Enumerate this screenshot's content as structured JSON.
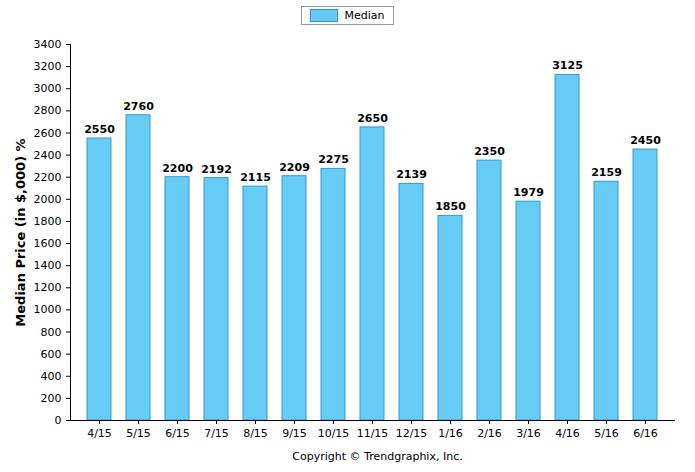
{
  "chart_data": {
    "type": "bar",
    "categories": [
      "4/15",
      "5/15",
      "6/15",
      "7/15",
      "8/15",
      "9/15",
      "10/15",
      "11/15",
      "12/15",
      "1/16",
      "2/16",
      "3/16",
      "4/16",
      "5/16",
      "6/16"
    ],
    "series": [
      {
        "name": "Median",
        "color": "#66ccf5",
        "values": [
          2550,
          2760,
          2200,
          2192,
          2115,
          2209,
          2275,
          2650,
          2139,
          1850,
          2350,
          1979,
          3125,
          2159,
          2450
        ]
      }
    ],
    "ylabel": "Median Price (in $,000) %",
    "caption": "Copyright © Trendgraphix, Inc.",
    "ylim": [
      0,
      3400
    ],
    "yticks": [
      0,
      200,
      400,
      600,
      800,
      1000,
      1200,
      1400,
      1600,
      1800,
      2000,
      2200,
      2400,
      2600,
      2800,
      3000,
      3200,
      3400
    ],
    "grid": false,
    "legend": "top",
    "data_labels": true
  }
}
